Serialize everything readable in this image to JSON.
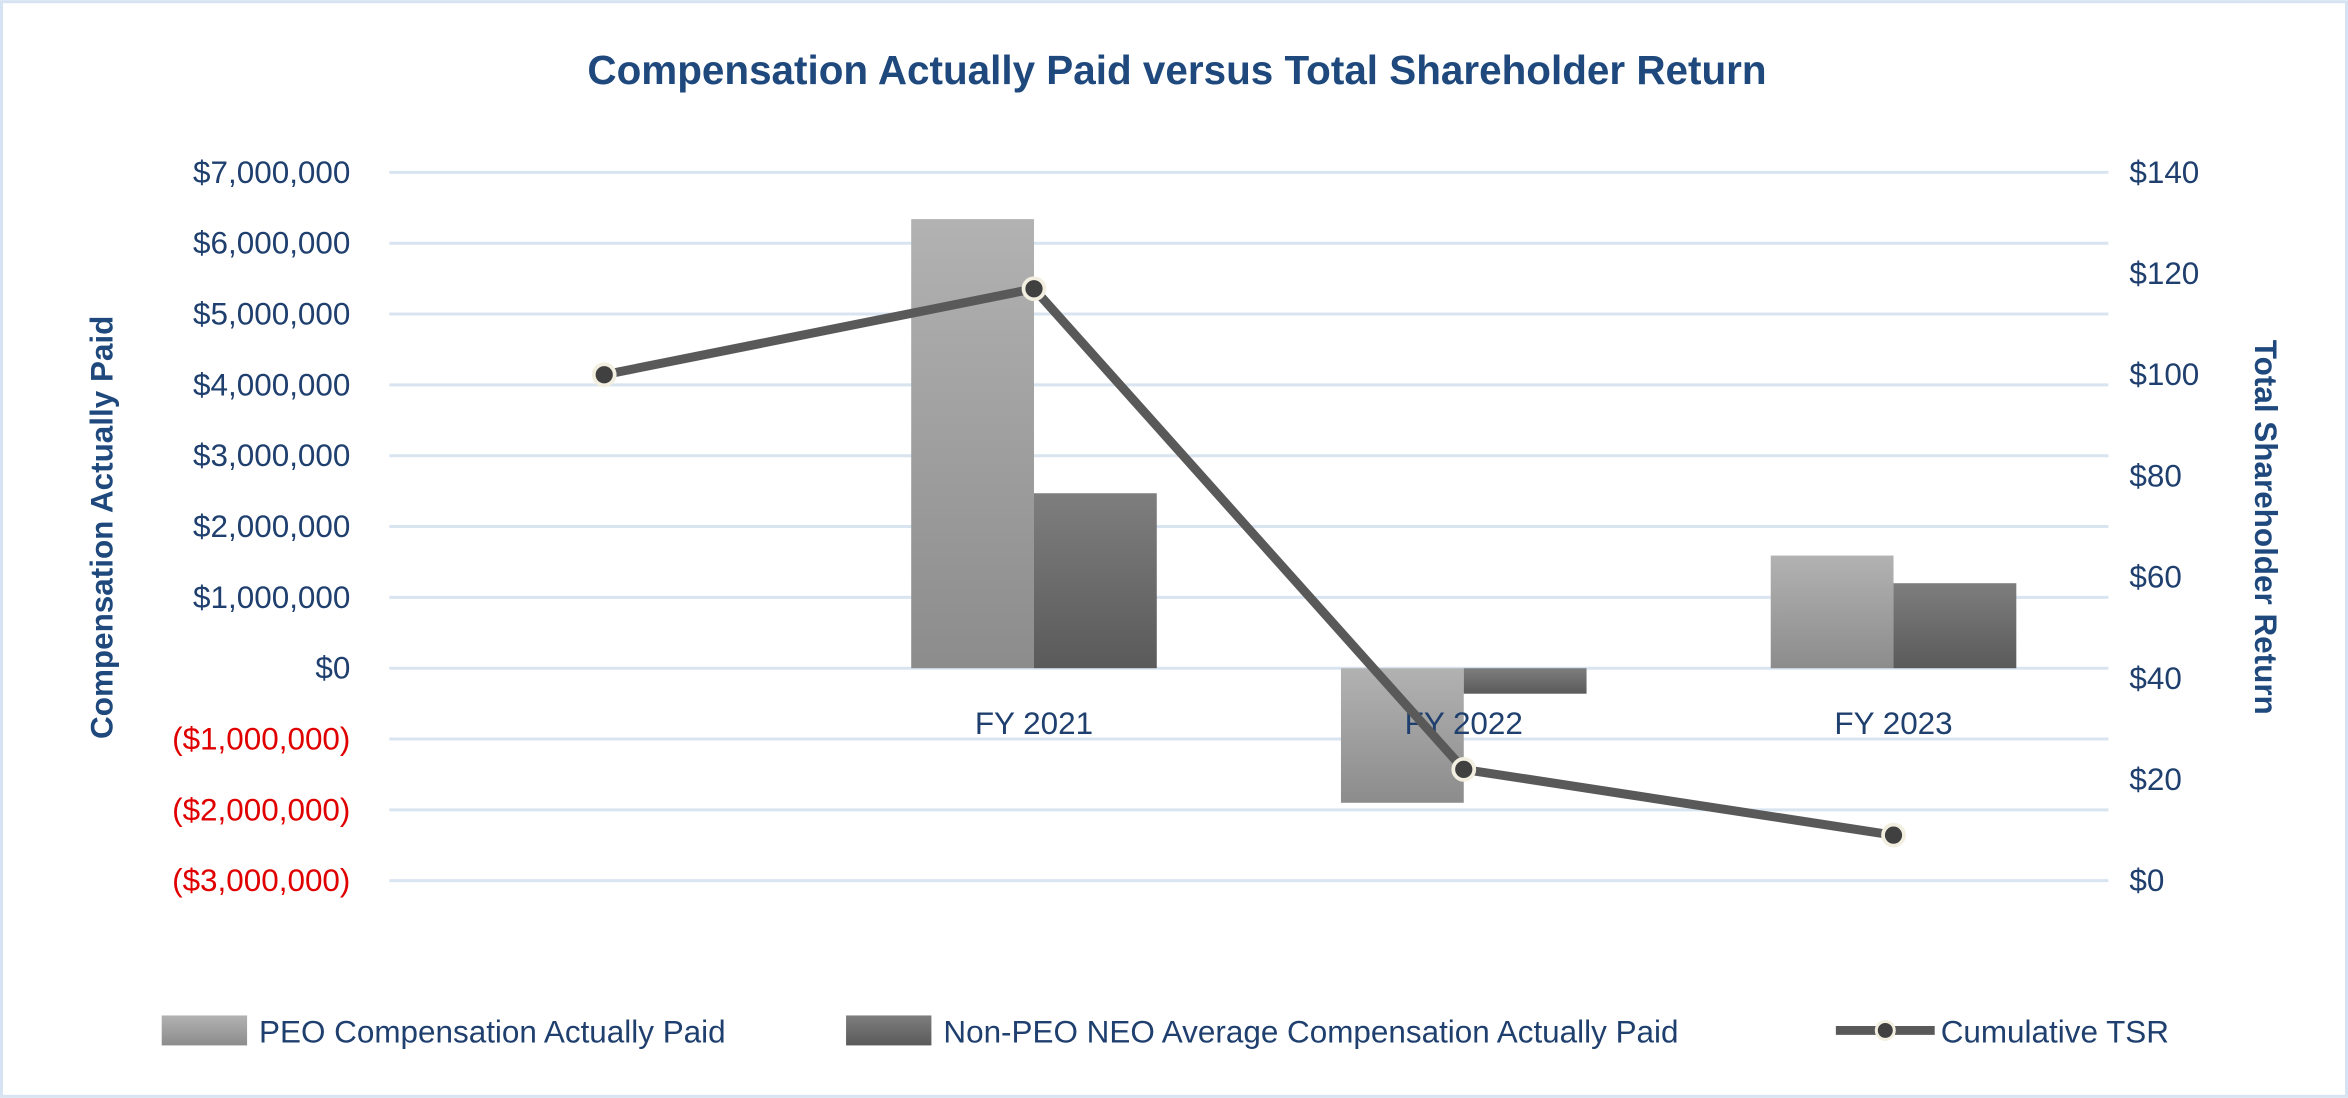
{
  "chart_data": {
    "type": "bar+line",
    "title": "Compensation Actually Paid versus Total Shareholder Return",
    "categories": [
      "",
      "FY 2021",
      "FY 2022",
      "FY 2023"
    ],
    "y_left": {
      "label": "Compensation Actually Paid",
      "range": [
        -3000000,
        7000000
      ],
      "ticks": [
        7000000,
        6000000,
        5000000,
        4000000,
        3000000,
        2000000,
        1000000,
        0,
        -1000000,
        -2000000,
        -3000000
      ],
      "tick_labels": [
        "$7,000,000",
        "$6,000,000",
        "$5,000,000",
        "$4,000,000",
        "$3,000,000",
        "$2,000,000",
        "$1,000,000",
        "$0",
        "($1,000,000)",
        "($2,000,000)",
        "($3,000,000)"
      ],
      "negative_label_color": "#e00000"
    },
    "y_right": {
      "label": "Total Shareholder Return",
      "range": [
        0,
        140
      ],
      "ticks": [
        140,
        120,
        100,
        80,
        60,
        40,
        20,
        0
      ],
      "tick_labels": [
        "$140",
        "$120",
        "$100",
        "$80",
        "$60",
        "$40",
        "$20",
        "$0"
      ]
    },
    "grid": true,
    "legend_position": "bottom",
    "series": [
      {
        "name": "PEO Compensation Actually Paid",
        "type": "bar",
        "axis": "left",
        "color": "#a6a6a6",
        "values": [
          null,
          6340000,
          -1900000,
          1590000
        ]
      },
      {
        "name": "Non-PEO NEO Average Compensation Actually Paid",
        "type": "bar",
        "axis": "left",
        "color": "#6e6e6e",
        "values": [
          null,
          2470000,
          -360000,
          1200000
        ]
      },
      {
        "name": "Cumulative TSR",
        "type": "line",
        "axis": "right",
        "color": "#595959",
        "values": [
          100,
          117,
          22,
          9
        ]
      }
    ],
    "title_color": "#1f497d",
    "grid_color": "#d9e4f1"
  }
}
